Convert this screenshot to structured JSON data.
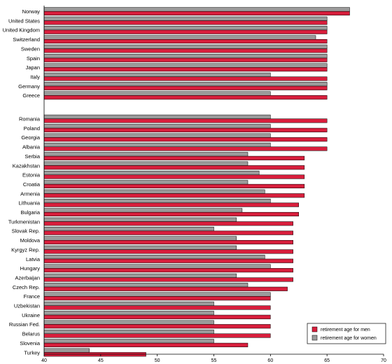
{
  "chart_data": {
    "type": "bar",
    "orientation": "horizontal",
    "title": "",
    "xlabel": "",
    "ylabel": "",
    "xlim": [
      40,
      70
    ],
    "xticks": [
      40,
      45,
      50,
      55,
      60,
      65,
      70
    ],
    "grid": false,
    "legend_position": "bottom-right",
    "colors": {
      "men": "#d81e3c",
      "women": "#9b9b9b"
    },
    "groups": [
      {
        "categories": [
          "Norway",
          "United States",
          "United Kingdom",
          "Switzerland",
          "Sweden",
          "Spain",
          "Japan",
          "Italy",
          "Germany",
          "Greece"
        ]
      },
      {
        "categories": [
          "Romania",
          "Poland",
          "Georgia",
          "Albania",
          "Serbia",
          "Kazakhstan",
          "Estonia",
          "Croatia",
          "Armenia",
          "Lithuania",
          "Bulgaria",
          "Turkmenistan",
          "Slovak Rep.",
          "Moldova",
          "Kyrgyz Rep.",
          "Latvia",
          "Hungary",
          "Azerbaijan",
          "Czech Rep.",
          "France",
          "Uzbekistan",
          "Ukraine",
          "Russian Fed.",
          "Belarus",
          "Slovenia",
          "Turkey"
        ]
      }
    ],
    "series": [
      {
        "name": "retirement age for men",
        "values": [
          67,
          65,
          65,
          65,
          65,
          65,
          65,
          65,
          65,
          65,
          65,
          65,
          65,
          65,
          63,
          63,
          63,
          63,
          63,
          62.5,
          62.5,
          62,
          62,
          62,
          62,
          62,
          62,
          62,
          61.5,
          60,
          60,
          60,
          60,
          60,
          58,
          49
        ]
      },
      {
        "name": "retirement age for women",
        "values": [
          67,
          65,
          65,
          64,
          65,
          65,
          65,
          60,
          65,
          60,
          60,
          60,
          60,
          60,
          58,
          58,
          59,
          58,
          59.5,
          60,
          57.5,
          57,
          55,
          57,
          57,
          59.5,
          60,
          57,
          58,
          60,
          55,
          55,
          55,
          55,
          55,
          44
        ]
      }
    ]
  }
}
